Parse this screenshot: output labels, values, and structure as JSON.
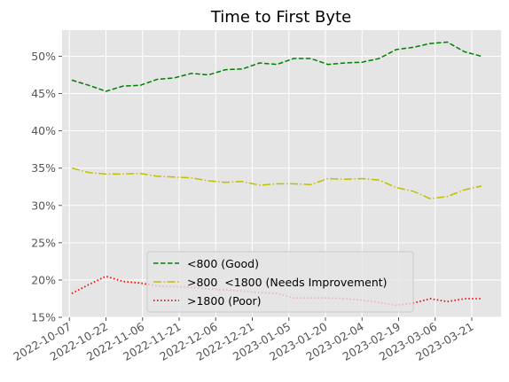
{
  "chart_data": {
    "type": "line",
    "title": "Time to First Byte",
    "xlabel": "",
    "ylabel": "",
    "ylim": [
      15,
      53.5
    ],
    "x_range": [
      "2022-10-04",
      "2023-04-02"
    ],
    "y_ticks": [
      15,
      20,
      25,
      30,
      35,
      40,
      45,
      50
    ],
    "y_tick_labels": [
      "15%",
      "20%",
      "25%",
      "30%",
      "35%",
      "40%",
      "45%",
      "50%"
    ],
    "x_ticks": [
      "2022-10-07",
      "2022-10-22",
      "2022-11-06",
      "2022-11-21",
      "2022-12-06",
      "2022-12-21",
      "2023-01-05",
      "2023-01-20",
      "2023-02-04",
      "2023-02-19",
      "2023-03-06",
      "2023-03-21"
    ],
    "x_tick_labels": [
      "2022-10-07",
      "2022-10-22",
      "2022-11-06",
      "2022-11-21",
      "2022-12-06",
      "2022-12-21",
      "2023-01-05",
      "2023-01-20",
      "2023-02-04",
      "2023-02-19",
      "2023-03-06",
      "2023-03-21"
    ],
    "grid": true,
    "legend_position": "lower center",
    "dates": [
      "2022-10-08",
      "2022-10-15",
      "2022-10-22",
      "2022-10-29",
      "2022-11-05",
      "2022-11-12",
      "2022-11-19",
      "2022-11-26",
      "2022-12-03",
      "2022-12-10",
      "2022-12-17",
      "2022-12-24",
      "2022-12-31",
      "2023-01-07",
      "2023-01-14",
      "2023-01-21",
      "2023-01-28",
      "2023-02-04",
      "2023-02-11",
      "2023-02-18",
      "2023-02-25",
      "2023-03-04",
      "2023-03-11",
      "2023-03-18",
      "2023-03-25"
    ],
    "series": [
      {
        "name": "<800 (Good)",
        "color": "#008000",
        "style": "dashed",
        "values": [
          46.8,
          46.1,
          45.3,
          46.0,
          46.1,
          46.9,
          47.1,
          47.7,
          47.5,
          48.2,
          48.3,
          49.1,
          48.9,
          49.7,
          49.7,
          48.9,
          49.1,
          49.2,
          49.7,
          50.9,
          51.2,
          51.7,
          51.9,
          50.6,
          50.0
        ]
      },
      {
        "name": ">800  <1800 (Needs Improvement)",
        "color": "#bfbf00",
        "style": "dashdot",
        "values": [
          35.0,
          34.4,
          34.2,
          34.2,
          34.3,
          33.9,
          33.8,
          33.7,
          33.3,
          33.1,
          33.2,
          32.7,
          32.9,
          32.9,
          32.8,
          33.6,
          33.5,
          33.6,
          33.4,
          32.4,
          31.9,
          30.9,
          31.2,
          32.1,
          32.6
        ]
      },
      {
        "name": ">1800 (Poor)",
        "color": "#ff0000",
        "style": "dotted",
        "values": [
          18.2,
          19.4,
          20.5,
          19.8,
          19.6,
          19.2,
          19.1,
          19.0,
          18.8,
          18.7,
          18.5,
          18.3,
          18.2,
          17.6,
          17.6,
          17.6,
          17.5,
          17.3,
          17.0,
          16.6,
          16.9,
          17.5,
          17.1,
          17.5,
          17.5
        ]
      }
    ]
  }
}
